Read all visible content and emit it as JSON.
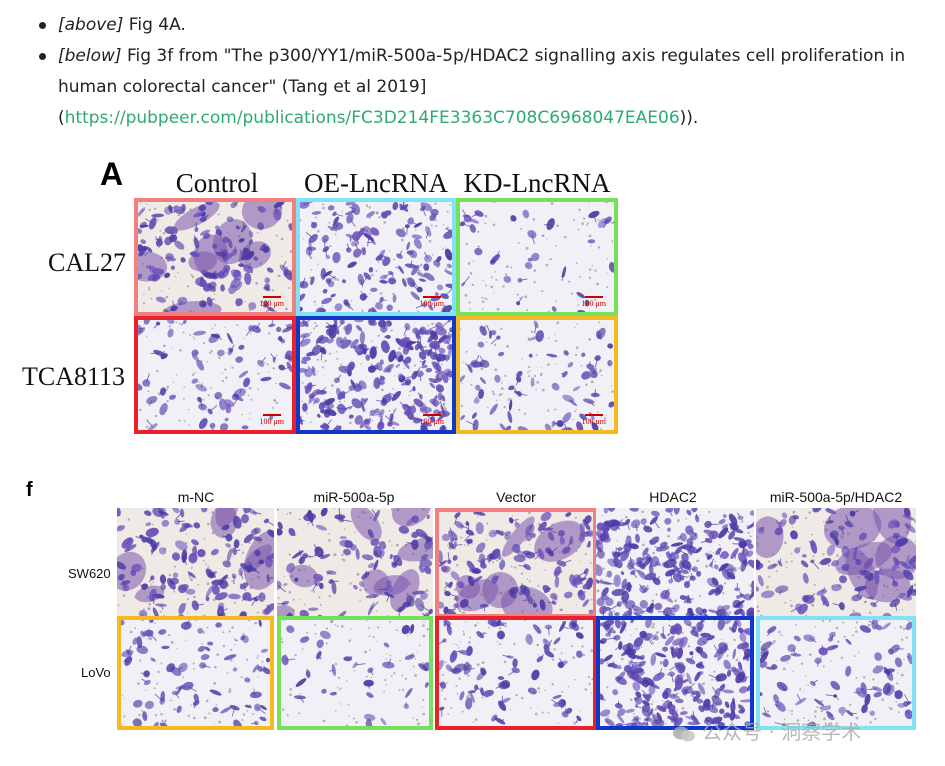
{
  "list": {
    "item1": {
      "tag": "[above]",
      "text": " Fig 4A."
    },
    "item2": {
      "tag": "[below]",
      "text": " Fig 3f from \"The p300/YY1/miR-500a-5p/HDAC2 signalling axis regulates cell proliferation in human colorectal cancer\" (Tang et al 2019]",
      "open": "(",
      "link": "https://pubpeer.com/publications/FC3D214FE3363C708C6968047EAE06",
      "close": "))."
    }
  },
  "figA": {
    "letter": "A",
    "columns": [
      "Control",
      "OE-LncRNA",
      "KD-LncRNA"
    ],
    "rows": [
      "CAL27",
      "TCA8113"
    ],
    "scale": "100 μm",
    "panels": [
      {
        "row": 0,
        "col": 0,
        "border": "#f08080",
        "density": "dense-clump"
      },
      {
        "row": 0,
        "col": 1,
        "border": "#7fe3f5",
        "density": "dense"
      },
      {
        "row": 0,
        "col": 2,
        "border": "#77e05a",
        "density": "sparse"
      },
      {
        "row": 1,
        "col": 0,
        "border": "#e8212b",
        "density": "medium"
      },
      {
        "row": 1,
        "col": 1,
        "border": "#1136c8",
        "density": "very-dense"
      },
      {
        "row": 1,
        "col": 2,
        "border": "#f5b921",
        "density": "medium"
      }
    ]
  },
  "figF": {
    "letter": "f",
    "columns": [
      "m-NC",
      "miR-500a-5p",
      "Vector",
      "HDAC2",
      "miR-500a-5p/HDAC2"
    ],
    "rows": [
      "SW620",
      "LoVo"
    ],
    "panels": [
      {
        "row": 0,
        "col": 0,
        "border": "none",
        "density": "dense-clump"
      },
      {
        "row": 0,
        "col": 1,
        "border": "none",
        "density": "medium-clump"
      },
      {
        "row": 0,
        "col": 2,
        "border": "#f08080",
        "density": "dense-clump"
      },
      {
        "row": 0,
        "col": 3,
        "border": "none",
        "density": "very-dense"
      },
      {
        "row": 0,
        "col": 4,
        "border": "none",
        "density": "medium-clump"
      },
      {
        "row": 1,
        "col": 0,
        "border": "#f5b921",
        "density": "medium"
      },
      {
        "row": 1,
        "col": 1,
        "border": "#77e05a",
        "density": "sparse"
      },
      {
        "row": 1,
        "col": 2,
        "border": "#e8212b",
        "density": "medium"
      },
      {
        "row": 1,
        "col": 3,
        "border": "#1136c8",
        "density": "very-dense"
      },
      {
        "row": 1,
        "col": 4,
        "border": "#7fe3f5",
        "density": "medium"
      }
    ]
  },
  "watermark": {
    "text": "公众号 · 洞察学术",
    "icon": "wechat-icon"
  }
}
